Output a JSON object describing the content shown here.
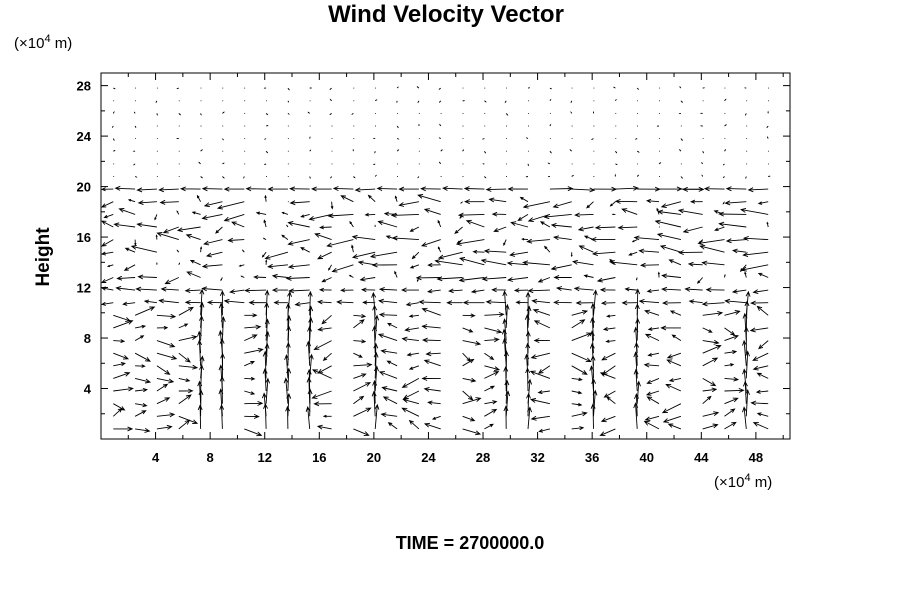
{
  "chart_data": {
    "type": "vector-field",
    "title": "Wind Velocity Vector",
    "xlabel": "",
    "xunit_prefix": "(×10",
    "xunit_exp": "4",
    "xunit_suffix": " m)",
    "ylabel": "Height",
    "yunit_prefix": "(×10",
    "yunit_exp": "4",
    "yunit_suffix": " m)",
    "xlim": [
      0,
      50.5
    ],
    "ylim": [
      0,
      29
    ],
    "x_ticks": [
      4,
      8,
      12,
      16,
      20,
      24,
      28,
      32,
      36,
      40,
      44,
      48
    ],
    "y_ticks": [
      4,
      8,
      12,
      16,
      20,
      24,
      28
    ],
    "x_tick_labels": [
      "4",
      "8",
      "12",
      "16",
      "20",
      "24",
      "28",
      "32",
      "36",
      "40",
      "44",
      "48"
    ],
    "y_tick_labels": [
      "4",
      "8",
      "12",
      "16",
      "20",
      "24",
      "28"
    ],
    "grid": false,
    "annotation": "TIME = 2700000.0",
    "vector_grid": {
      "x_spacing": 1.6,
      "y_spacing": 1.0
    },
    "field_regions": [
      {
        "y_range": [
          20.5,
          29
        ],
        "description": "near-calm upper layer"
      },
      {
        "y_range": [
          19.5,
          20.5
        ],
        "description": "strong westward jet"
      },
      {
        "y_range": [
          12,
          19.5
        ],
        "description": "turbulent mid layer"
      },
      {
        "y_range": [
          10,
          12
        ],
        "description": "westward flow"
      },
      {
        "y_range": [
          0,
          10
        ],
        "description": "convective cells with vertical updrafts"
      }
    ],
    "updraft_columns_x": [
      8,
      12,
      14.5,
      20,
      30,
      32,
      36,
      40,
      47
    ]
  }
}
